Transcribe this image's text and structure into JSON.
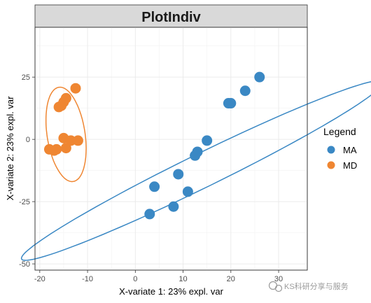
{
  "chart_data": {
    "type": "scatter",
    "title": "PlotIndiv",
    "xlabel": "X-variate 1: 23% expl. var",
    "ylabel": "X-variate 2: 23% expl. var",
    "xlim": [
      -21,
      36
    ],
    "ylim": [
      -52.5,
      45
    ],
    "xticks": [
      -20,
      -10,
      0,
      10,
      20,
      30
    ],
    "yticks": [
      -50,
      -25,
      0,
      25
    ],
    "grid": true,
    "legend": {
      "title": "Legend",
      "position": "right"
    },
    "series": [
      {
        "name": "MA",
        "color": "#3a88c4",
        "points": [
          [
            26,
            25
          ],
          [
            23,
            19.5
          ],
          [
            19.5,
            14.5
          ],
          [
            20,
            14.5
          ],
          [
            15,
            -0.5
          ],
          [
            13,
            -5
          ],
          [
            12.5,
            -6.5
          ],
          [
            9,
            -14
          ],
          [
            4,
            -19
          ],
          [
            11,
            -21
          ],
          [
            8,
            -27
          ],
          [
            3,
            -30
          ]
        ],
        "ellipse": {
          "cx": 14,
          "cy": -12.5,
          "semi_major": 52,
          "semi_minor": 5.5,
          "angle_deg": 43.6
        }
      },
      {
        "name": "MD",
        "color": "#ef8632",
        "points": [
          [
            -12.5,
            20.5
          ],
          [
            -14.5,
            16.5
          ],
          [
            -15,
            15
          ],
          [
            -15.5,
            13.5
          ],
          [
            -16,
            13
          ],
          [
            -15,
            0.5
          ],
          [
            -13.5,
            -0.5
          ],
          [
            -12,
            -0.5
          ],
          [
            -14.5,
            -3.5
          ],
          [
            -16.5,
            -4
          ],
          [
            -18,
            -4
          ],
          [
            -17,
            -4.5
          ]
        ],
        "ellipse": {
          "cx": -14.5,
          "cy": 2,
          "semi_major": 19,
          "semi_minor": 4,
          "angle_deg": 94
        }
      }
    ]
  },
  "watermark": {
    "text": "KS科研分享与服务"
  }
}
